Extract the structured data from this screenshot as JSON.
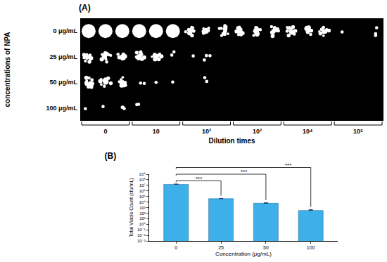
{
  "panel_a": {
    "label": "(A)",
    "ylabel": "concentrations of NPA",
    "rows": [
      "0 μg/mL",
      "25 μg/mL",
      "50 μg/mL",
      "100 μg/mL"
    ],
    "xlabel": "Dilution times",
    "columns": [
      "0",
      "10",
      "10²",
      "10³",
      "10⁴",
      "10⁵"
    ]
  },
  "chart_data": {
    "type": "bar",
    "title": "(B)",
    "x_label": "Concentration (μg/mL)",
    "y_label": "Total Viable Count (cfu/mL)",
    "categories": [
      "0",
      "25",
      "50",
      "100"
    ],
    "values": [
      15000000,
      40000,
      6000,
      300
    ],
    "errors": [
      2000000,
      5000,
      1200,
      120
    ],
    "color": "#3db0ea",
    "log": "y",
    "ylim": [
      0.001,
      1000000000
    ],
    "yticks": [
      {
        "value": 0.001,
        "label": "10⁻³"
      },
      {
        "value": 0.01,
        "label": "10⁻²"
      },
      {
        "value": 0.1,
        "label": "10⁻¹"
      },
      {
        "value": 1,
        "label": "10⁰"
      },
      {
        "value": 10,
        "label": "10¹"
      },
      {
        "value": 100,
        "label": "10²"
      },
      {
        "value": 1000,
        "label": "10³"
      },
      {
        "value": 10000,
        "label": "10⁴"
      },
      {
        "value": 100000,
        "label": "10⁵"
      },
      {
        "value": 1000000,
        "label": "10⁶"
      },
      {
        "value": 10000000,
        "label": "10⁷"
      },
      {
        "value": 100000000,
        "label": "10⁸"
      },
      {
        "value": 1000000000,
        "label": "10⁹"
      }
    ],
    "grid": false,
    "annotations": [
      {
        "from": "0",
        "to": "25",
        "text": "***"
      },
      {
        "from": "0",
        "to": "50",
        "text": "***"
      },
      {
        "from": "0",
        "to": "100",
        "text": "***"
      }
    ]
  }
}
